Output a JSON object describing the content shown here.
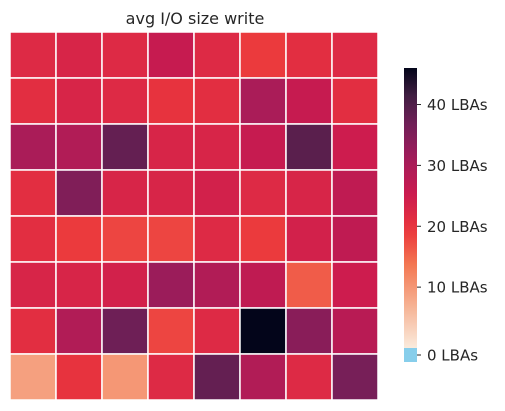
{
  "chart_data": {
    "type": "heatmap",
    "title": "avg I/O size write",
    "xlabel": "",
    "ylabel": "",
    "rows": 8,
    "cols": 8,
    "values": [
      [
        22,
        23,
        22,
        26,
        22,
        19,
        21,
        22
      ],
      [
        21,
        23,
        22,
        20,
        21,
        30,
        26,
        21
      ],
      [
        30,
        29,
        38,
        23,
        23,
        26,
        39,
        25
      ],
      [
        21,
        35,
        23,
        23,
        24,
        22,
        23,
        27
      ],
      [
        21,
        19,
        18,
        18,
        22,
        19,
        24,
        27
      ],
      [
        23,
        23,
        24,
        32,
        29,
        27,
        16,
        25
      ],
      [
        21,
        29,
        37,
        18,
        22,
        46,
        34,
        28
      ],
      [
        9,
        20,
        10,
        22,
        38,
        29,
        22,
        36
      ]
    ],
    "colorbar": {
      "min": 0,
      "max": 46,
      "ticks": [
        0,
        10,
        20,
        30,
        40
      ],
      "tick_labels": [
        "0 LBAs",
        "10 LBAs",
        "20 LBAs",
        "30 LBAs",
        "40 LBAs"
      ],
      "under_color": "#87ceeb",
      "colormap": "rocket_r"
    },
    "grid": true,
    "grid_color": "#ffffff"
  }
}
